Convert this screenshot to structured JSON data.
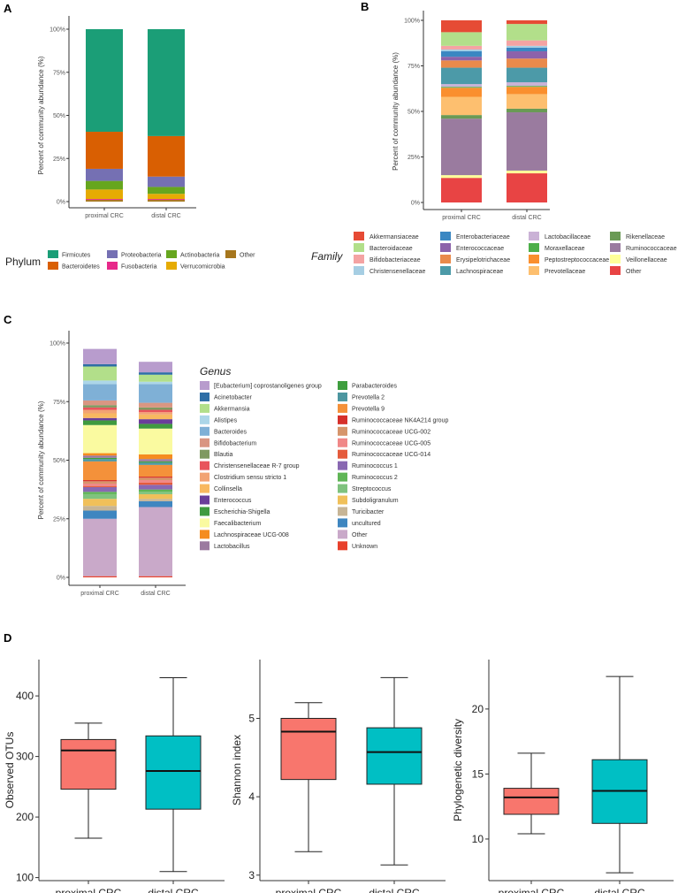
{
  "panels": {
    "a": "A",
    "b": "B",
    "c": "C",
    "d": "D"
  },
  "chart_data": [
    {
      "type": "bar",
      "stacked": true,
      "panel": "A",
      "categories": [
        "proximal CRC",
        "distal CRC"
      ],
      "ylabel": "Percent of community abundance (%)",
      "ylim": [
        0,
        100
      ],
      "yticks": [
        "0%",
        "25%",
        "50%",
        "75%",
        "100%"
      ],
      "legend_title": "Phylum",
      "series": [
        {
          "name": "Other",
          "color": "#a6761d",
          "values": [
            1,
            1
          ]
        },
        {
          "name": "Fusobacteria",
          "color": "#e7298a",
          "values": [
            0.5,
            0.5
          ]
        },
        {
          "name": "Verrucomicrobia",
          "color": "#e6ab02",
          "values": [
            5.5,
            3
          ]
        },
        {
          "name": "Actinobacteria",
          "color": "#66a61e",
          "values": [
            5,
            4
          ]
        },
        {
          "name": "Proteobacteria",
          "color": "#7570b3",
          "values": [
            7,
            6
          ]
        },
        {
          "name": "Bacteroidetes",
          "color": "#d95f02",
          "values": [
            21.5,
            23.5
          ]
        },
        {
          "name": "Firmicutes",
          "color": "#1b9e77",
          "values": [
            59.5,
            62
          ]
        }
      ],
      "legend_order": [
        "Firmicutes",
        "Bacteroidetes",
        "Proteobacteria",
        "Fusobacteria",
        "Actinobacteria",
        "Verrucomicrobia",
        "Other"
      ]
    },
    {
      "type": "bar",
      "stacked": true,
      "panel": "B",
      "categories": [
        "proximal CRC",
        "distal CRC"
      ],
      "ylabel": "Percent of community abundance (%)",
      "ylim": [
        0,
        100
      ],
      "yticks": [
        "0%",
        "25%",
        "50%",
        "75%",
        "100%"
      ],
      "legend_title": "Family",
      "series": [
        {
          "name": "Other",
          "color": "#e84444",
          "values": [
            13.5,
            16
          ]
        },
        {
          "name": "Veillonellaceae",
          "color": "#ffff99",
          "values": [
            1.5,
            1.5
          ]
        },
        {
          "name": "Ruminococcaceae",
          "color": "#9a7b9f",
          "values": [
            31,
            32
          ]
        },
        {
          "name": "Rikenellaceae",
          "color": "#6a9a55",
          "values": [
            2,
            2
          ]
        },
        {
          "name": "Prevotellaceae",
          "color": "#fdbf6f",
          "values": [
            10,
            8
          ]
        },
        {
          "name": "Peptostreptococcaceae",
          "color": "#fa8f2e",
          "values": [
            5,
            4
          ]
        },
        {
          "name": "Moraxellaceae",
          "color": "#4daf4a",
          "values": [
            0.5,
            0.5
          ]
        },
        {
          "name": "Lactobacillaceae",
          "color": "#cab2d6",
          "values": [
            1.5,
            2
          ]
        },
        {
          "name": "Lachnospiraceae",
          "color": "#4c9aa8",
          "values": [
            9,
            8
          ]
        },
        {
          "name": "Erysipelotrichaceae",
          "color": "#e98a4b",
          "values": [
            4,
            5
          ]
        },
        {
          "name": "Enterococcaceae",
          "color": "#8c62aa",
          "values": [
            2,
            4
          ]
        },
        {
          "name": "Enterobacteriaceae",
          "color": "#3a87c2",
          "values": [
            3,
            2
          ]
        },
        {
          "name": "Christensenellaceae",
          "color": "#a6cee3",
          "values": [
            1,
            1
          ]
        },
        {
          "name": "Bifidobacteriaceae",
          "color": "#f4a3a3",
          "values": [
            2,
            3
          ]
        },
        {
          "name": "Bacteroidaceae",
          "color": "#b2df8a",
          "values": [
            7.5,
            9
          ]
        },
        {
          "name": "Akkermansiaceae",
          "color": "#e64b35",
          "values": [
            6.5,
            2
          ]
        }
      ],
      "legend_cols": [
        [
          "Akkermansiaceae",
          "Bacteroidaceae",
          "Bifidobacteriaceae",
          "Christensenellaceae"
        ],
        [
          "Enterobacteriaceae",
          "Enterococcaceae",
          "Erysipelotrichaceae",
          "Lachnospiraceae"
        ],
        [
          "Lactobacillaceae",
          "Moraxellaceae",
          "Peptostreptococcaceae",
          "Prevotellaceae"
        ],
        [
          "Rikenellaceae",
          "Ruminococcaceae",
          "Veillonellaceae",
          "Other"
        ]
      ]
    },
    {
      "type": "bar",
      "stacked": true,
      "panel": "C",
      "categories": [
        "proximal CRC",
        "distal CRC"
      ],
      "ylabel": "Percent of community abundance (%)",
      "ylim": [
        0,
        100
      ],
      "yticks": [
        "0%",
        "25%",
        "50%",
        "75%",
        "100%"
      ],
      "legend_title": "Genus",
      "series": [
        {
          "name": "Unknown",
          "color": "#e8412c",
          "values": [
            0.5,
            0.5
          ]
        },
        {
          "name": "Other",
          "color": "#c9a9c9",
          "values": [
            24.5,
            29.5
          ]
        },
        {
          "name": "uncultured",
          "color": "#3e86c0",
          "values": [
            3.5,
            2.5
          ]
        },
        {
          "name": "Turicibacter",
          "color": "#c7b596",
          "values": [
            2,
            1
          ]
        },
        {
          "name": "Subdoligranulum",
          "color": "#f0c05a",
          "values": [
            3,
            2
          ]
        },
        {
          "name": "Streptococcus",
          "color": "#7fc27e",
          "values": [
            2,
            1
          ]
        },
        {
          "name": "Ruminococcus 2",
          "color": "#5fb556",
          "values": [
            1,
            1
          ]
        },
        {
          "name": "Ruminococcus 1",
          "color": "#8968b2",
          "values": [
            2,
            2
          ]
        },
        {
          "name": "Ruminococcaceae UCG-014",
          "color": "#e55b3c",
          "values": [
            0.5,
            1
          ]
        },
        {
          "name": "Ruminococcaceae UCG-005",
          "color": "#f08888",
          "values": [
            1,
            1
          ]
        },
        {
          "name": "Ruminococcaceae UCG-002",
          "color": "#d6956b",
          "values": [
            1,
            1
          ]
        },
        {
          "name": "Ruminococcaceae NK4A214 group",
          "color": "#d6302b",
          "values": [
            0.5,
            0.5
          ]
        },
        {
          "name": "Prevotella 9",
          "color": "#f4913a",
          "values": [
            8,
            5
          ]
        },
        {
          "name": "Prevotella 2",
          "color": "#4c96a0",
          "values": [
            1,
            1
          ]
        },
        {
          "name": "Parabacteroides",
          "color": "#3e9e3e",
          "values": [
            0.5,
            0.5
          ]
        },
        {
          "name": "Lactobacillus",
          "color": "#9b7aa0",
          "values": [
            1,
            1
          ]
        },
        {
          "name": "Lachnospiraceae UCG-008",
          "color": "#f58c1f",
          "values": [
            1,
            2
          ]
        },
        {
          "name": "Faecalibacterium",
          "color": "#fafaa0",
          "values": [
            12,
            11
          ]
        },
        {
          "name": "Escherichia-Shigella",
          "color": "#3f9a3f",
          "values": [
            2,
            2
          ]
        },
        {
          "name": "Enterococcus",
          "color": "#6a3e9a",
          "values": [
            1,
            2
          ]
        },
        {
          "name": "Collinsella",
          "color": "#f8b860",
          "values": [
            2,
            2
          ]
        },
        {
          "name": "Clostridium sensu stricto 1",
          "color": "#f2a374",
          "values": [
            1.5,
            1
          ]
        },
        {
          "name": "Christensenellaceae R-7 group",
          "color": "#e8545c",
          "values": [
            1,
            1
          ]
        },
        {
          "name": "Blautia",
          "color": "#7f9960",
          "values": [
            1,
            1
          ]
        },
        {
          "name": "Bifidobacterium",
          "color": "#d99682",
          "values": [
            2,
            2
          ]
        },
        {
          "name": "Bacteroides",
          "color": "#7fb0d6",
          "values": [
            7,
            8
          ]
        },
        {
          "name": "Alistipes",
          "color": "#acd6e8",
          "values": [
            1.5,
            1
          ]
        },
        {
          "name": "Akkermansia",
          "color": "#b2df8a",
          "values": [
            6,
            3
          ]
        },
        {
          "name": "Acinetobacter",
          "color": "#2e6ea6",
          "values": [
            1,
            1
          ]
        },
        {
          "name": "[Eubacterium] coprostanoligenes group",
          "color": "#b89ccd",
          "values": [
            6.5,
            4.5
          ]
        }
      ],
      "legend_cols": [
        [
          "[Eubacterium] coprostanoligenes group",
          "Acinetobacter",
          "Akkermansia",
          "Alistipes",
          "Bacteroides",
          "Bifidobacterium",
          "Blautia",
          "Christensenellaceae R-7 group",
          "Clostridium sensu stricto 1",
          "Collinsella",
          "Enterococcus",
          "Escherichia-Shigella",
          "Faecalibacterium",
          "Lachnospiraceae UCG-008",
          "Lactobacillus"
        ],
        [
          "Parabacteroides",
          "Prevotella 2",
          "Prevotella 9",
          "Ruminococcaceae NK4A214 group",
          "Ruminococcaceae UCG-002",
          "Ruminococcaceae UCG-005",
          "Ruminococcaceae UCG-014",
          "Ruminococcus 1",
          "Ruminococcus 2",
          "Streptococcus",
          "Subdoligranulum",
          "Turicibacter",
          "uncultured",
          "Other",
          "Unknown"
        ]
      ]
    },
    {
      "type": "box",
      "panel": "D1",
      "categories": [
        "proximal CRC",
        "distal CRC"
      ],
      "ylabel": "Observed OTUs",
      "ylim": [
        95,
        460
      ],
      "yticks": [
        100,
        200,
        300,
        400
      ],
      "colors": [
        "#f8766d",
        "#00bfc4"
      ],
      "boxes": [
        {
          "min": 165,
          "q1": 246,
          "median": 310,
          "q3": 328,
          "max": 355
        },
        {
          "min": 110,
          "q1": 213,
          "median": 276,
          "q3": 334,
          "max": 430
        }
      ]
    },
    {
      "type": "box",
      "panel": "D2",
      "categories": [
        "proximal CRC",
        "distal CRC"
      ],
      "ylabel": "Shannon index",
      "ylim": [
        2.93,
        5.75
      ],
      "yticks": [
        3,
        4,
        5
      ],
      "colors": [
        "#f8766d",
        "#00bfc4"
      ],
      "boxes": [
        {
          "min": 3.3,
          "q1": 4.22,
          "median": 4.83,
          "q3": 5.0,
          "max": 5.2
        },
        {
          "min": 3.13,
          "q1": 4.16,
          "median": 4.57,
          "q3": 4.88,
          "max": 5.52
        }
      ]
    },
    {
      "type": "box",
      "panel": "D3",
      "categories": [
        "proximal CRC",
        "distal CRC"
      ],
      "ylabel": "Phylogenetic diversity",
      "ylim": [
        6.8,
        23.8
      ],
      "yticks": [
        10,
        15,
        20
      ],
      "colors": [
        "#f8766d",
        "#00bfc4"
      ],
      "boxes": [
        {
          "min": 10.4,
          "q1": 11.9,
          "median": 13.2,
          "q3": 13.9,
          "max": 16.6
        },
        {
          "min": 7.4,
          "q1": 11.2,
          "median": 13.7,
          "q3": 16.1,
          "max": 22.5
        }
      ]
    }
  ]
}
